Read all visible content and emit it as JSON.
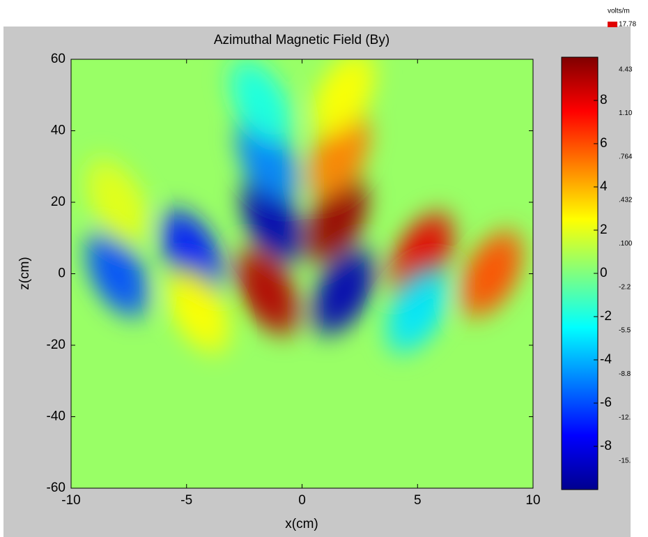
{
  "chart_data": {
    "type": "heatmap",
    "title": "Azimuthal Magnetic Field (By)",
    "x_label": "x(cm)",
    "y_label": "z(cm)",
    "xlim": [
      -10,
      10
    ],
    "xticks": [
      -10,
      -5,
      0,
      5,
      10
    ],
    "ylim": [
      -60,
      60
    ],
    "yticks": [
      -60,
      -40,
      -20,
      0,
      20,
      40,
      60
    ],
    "clim": [
      -10,
      10
    ],
    "cticks": [
      -8,
      -6,
      -4,
      -2,
      0,
      2,
      4,
      6,
      8
    ],
    "colormap": "jet",
    "background_value": 0.5,
    "blobs": {
      "x": [
        -8,
        -8,
        -4.8,
        -4.5,
        -1.3,
        -1.5,
        1.5,
        1.6,
        -1.5,
        1.8,
        5.2,
        5,
        8.2,
        1.8,
        -1.8
      ],
      "z": [
        0,
        20,
        6,
        -10,
        15,
        32,
        15,
        33,
        -5,
        -5,
        5,
        -10,
        0,
        50,
        48
      ],
      "values": [
        -6,
        2,
        -7,
        2.5,
        -9,
        -5,
        9.5,
        5,
        9,
        -9,
        8,
        -3,
        6,
        2.5,
        -2
      ]
    },
    "side_legend": {
      "unit": "volts/m",
      "top_value": "17.78",
      "labels": [
        "4.43",
        "1.10",
        ".764",
        ".432",
        ".100",
        "-2.2",
        "-5.5",
        "-8.8",
        "-12.",
        "-15."
      ]
    }
  }
}
